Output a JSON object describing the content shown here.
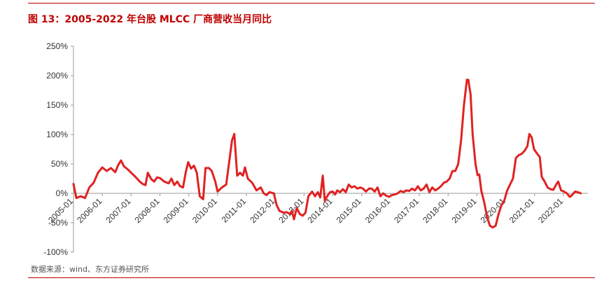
{
  "figure": {
    "title": "图 13：2005-2022 年台股 MLCC 厂商营收当月同比",
    "source": "数据来源：wind、东方证券研究所"
  },
  "colors": {
    "accent": "#c00000",
    "series": "#e02222",
    "axis": "#999999"
  },
  "chart_data": {
    "type": "line",
    "title": "",
    "xlabel": "",
    "ylabel": "",
    "ylim": [
      -100,
      250
    ],
    "y_ticks": [
      "250%",
      "200%",
      "150%",
      "100%",
      "50%",
      "0%",
      "-50%",
      "-100%"
    ],
    "y_tick_values": [
      250,
      200,
      150,
      100,
      50,
      0,
      -50,
      -100
    ],
    "x_ticks": [
      "2005-01",
      "2006-01",
      "2007-01",
      "2008-01",
      "2009-01",
      "2010-01",
      "2011-01",
      "2012-01",
      "2013-01",
      "2014-01",
      "2015-01",
      "2016-01",
      "2017-01",
      "2018-01",
      "2019-01",
      "2020-01",
      "2021-01",
      "2022-01"
    ],
    "x_tick_values": [
      2005,
      2006,
      2007,
      2008,
      2009,
      2010,
      2011,
      2012,
      2013,
      2014,
      2015,
      2016,
      2017,
      2018,
      2019,
      2020,
      2021,
      2022
    ],
    "grid": false,
    "legend": "none",
    "series": [
      {
        "name": "",
        "points": [
          [
            2005.0,
            16
          ],
          [
            2005.1,
            -8
          ],
          [
            2005.25,
            -5
          ],
          [
            2005.4,
            -8
          ],
          [
            2005.55,
            10
          ],
          [
            2005.7,
            18
          ],
          [
            2005.85,
            35
          ],
          [
            2006.0,
            44
          ],
          [
            2006.15,
            38
          ],
          [
            2006.3,
            43
          ],
          [
            2006.45,
            36
          ],
          [
            2006.55,
            48
          ],
          [
            2006.65,
            56
          ],
          [
            2006.75,
            46
          ],
          [
            2006.9,
            40
          ],
          [
            2007.0,
            35
          ],
          [
            2007.15,
            28
          ],
          [
            2007.3,
            20
          ],
          [
            2007.4,
            16
          ],
          [
            2007.5,
            14
          ],
          [
            2007.58,
            35
          ],
          [
            2007.7,
            24
          ],
          [
            2007.8,
            20
          ],
          [
            2007.9,
            27
          ],
          [
            2008.0,
            26
          ],
          [
            2008.15,
            20
          ],
          [
            2008.3,
            17
          ],
          [
            2008.4,
            25
          ],
          [
            2008.5,
            14
          ],
          [
            2008.6,
            20
          ],
          [
            2008.7,
            12
          ],
          [
            2008.8,
            10
          ],
          [
            2008.9,
            37
          ],
          [
            2008.98,
            53
          ],
          [
            2009.08,
            42
          ],
          [
            2009.18,
            47
          ],
          [
            2009.28,
            35
          ],
          [
            2009.38,
            -5
          ],
          [
            2009.5,
            -10
          ],
          [
            2009.58,
            43
          ],
          [
            2009.7,
            43
          ],
          [
            2009.8,
            38
          ],
          [
            2009.92,
            20
          ],
          [
            2010.0,
            3
          ],
          [
            2010.15,
            10
          ],
          [
            2010.3,
            15
          ],
          [
            2010.42,
            60
          ],
          [
            2010.5,
            90
          ],
          [
            2010.58,
            101
          ],
          [
            2010.68,
            30
          ],
          [
            2010.78,
            35
          ],
          [
            2010.88,
            30
          ],
          [
            2010.95,
            44
          ],
          [
            2011.05,
            25
          ],
          [
            2011.2,
            18
          ],
          [
            2011.35,
            5
          ],
          [
            2011.5,
            10
          ],
          [
            2011.6,
            0
          ],
          [
            2011.7,
            -3
          ],
          [
            2011.8,
            2
          ],
          [
            2011.95,
            0
          ],
          [
            2012.05,
            -20
          ],
          [
            2012.15,
            -30
          ],
          [
            2012.3,
            -33
          ],
          [
            2012.4,
            -32
          ],
          [
            2012.5,
            -35
          ],
          [
            2012.58,
            -30
          ],
          [
            2012.65,
            -44
          ],
          [
            2012.75,
            -25
          ],
          [
            2012.85,
            -35
          ],
          [
            2012.95,
            -38
          ],
          [
            2013.05,
            -33
          ],
          [
            2013.15,
            -5
          ],
          [
            2013.28,
            3
          ],
          [
            2013.38,
            -5
          ],
          [
            2013.48,
            2
          ],
          [
            2013.56,
            -7
          ],
          [
            2013.65,
            30
          ],
          [
            2013.72,
            -13
          ],
          [
            2013.8,
            -5
          ],
          [
            2013.9,
            2
          ],
          [
            2014.0,
            3
          ],
          [
            2014.08,
            -2
          ],
          [
            2014.15,
            5
          ],
          [
            2014.25,
            2
          ],
          [
            2014.35,
            7
          ],
          [
            2014.45,
            2
          ],
          [
            2014.55,
            15
          ],
          [
            2014.65,
            10
          ],
          [
            2014.75,
            12
          ],
          [
            2014.85,
            8
          ],
          [
            2014.95,
            10
          ],
          [
            2015.05,
            8
          ],
          [
            2015.15,
            3
          ],
          [
            2015.25,
            8
          ],
          [
            2015.35,
            8
          ],
          [
            2015.45,
            3
          ],
          [
            2015.55,
            10
          ],
          [
            2015.65,
            -5
          ],
          [
            2015.75,
            0
          ],
          [
            2015.85,
            -4
          ],
          [
            2015.95,
            -6
          ],
          [
            2016.05,
            -3
          ],
          [
            2016.15,
            -2
          ],
          [
            2016.25,
            0
          ],
          [
            2016.35,
            4
          ],
          [
            2016.45,
            2
          ],
          [
            2016.55,
            5
          ],
          [
            2016.65,
            4
          ],
          [
            2016.75,
            8
          ],
          [
            2016.85,
            5
          ],
          [
            2016.95,
            12
          ],
          [
            2017.05,
            5
          ],
          [
            2017.15,
            8
          ],
          [
            2017.25,
            15
          ],
          [
            2017.35,
            2
          ],
          [
            2017.45,
            10
          ],
          [
            2017.55,
            5
          ],
          [
            2017.65,
            8
          ],
          [
            2017.75,
            12
          ],
          [
            2017.85,
            18
          ],
          [
            2017.95,
            20
          ],
          [
            2018.05,
            25
          ],
          [
            2018.15,
            38
          ],
          [
            2018.25,
            38
          ],
          [
            2018.35,
            50
          ],
          [
            2018.45,
            90
          ],
          [
            2018.55,
            150
          ],
          [
            2018.65,
            193
          ],
          [
            2018.7,
            193
          ],
          [
            2018.78,
            168
          ],
          [
            2018.85,
            100
          ],
          [
            2018.95,
            50
          ],
          [
            2019.02,
            31
          ],
          [
            2019.08,
            32
          ],
          [
            2019.15,
            5
          ],
          [
            2019.25,
            -15
          ],
          [
            2019.35,
            -40
          ],
          [
            2019.45,
            -55
          ],
          [
            2019.55,
            -58
          ],
          [
            2019.65,
            -55
          ],
          [
            2019.75,
            -35
          ],
          [
            2019.85,
            -20
          ],
          [
            2019.95,
            -12
          ],
          [
            2020.05,
            5
          ],
          [
            2020.15,
            15
          ],
          [
            2020.25,
            25
          ],
          [
            2020.35,
            60
          ],
          [
            2020.45,
            65
          ],
          [
            2020.55,
            67
          ],
          [
            2020.65,
            72
          ],
          [
            2020.75,
            80
          ],
          [
            2020.82,
            101
          ],
          [
            2020.9,
            95
          ],
          [
            2020.98,
            75
          ],
          [
            2021.08,
            68
          ],
          [
            2021.18,
            62
          ],
          [
            2021.25,
            28
          ],
          [
            2021.35,
            20
          ],
          [
            2021.45,
            10
          ],
          [
            2021.55,
            7
          ],
          [
            2021.65,
            6
          ],
          [
            2021.75,
            15
          ],
          [
            2021.82,
            20
          ],
          [
            2021.92,
            5
          ],
          [
            2022.02,
            3
          ],
          [
            2022.12,
            0
          ],
          [
            2022.22,
            -6
          ],
          [
            2022.3,
            -3
          ],
          [
            2022.4,
            3
          ],
          [
            2022.5,
            2
          ],
          [
            2022.6,
            0
          ]
        ]
      }
    ]
  }
}
